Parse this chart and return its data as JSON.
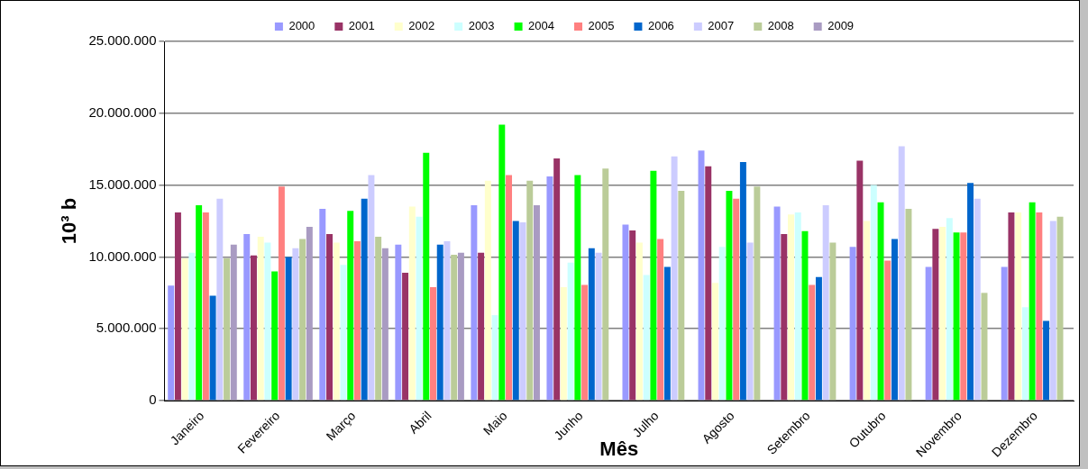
{
  "chart_data": {
    "type": "bar",
    "xlabel": "Mês",
    "ylabel": "10³ b",
    "categories": [
      "Janeiro",
      "Fevereiro",
      "Março",
      "Abril",
      "Maio",
      "Junho",
      "Julho",
      "Agosto",
      "Setembro",
      "Outubro",
      "Novembro",
      "Dezembro"
    ],
    "series": [
      {
        "name": "2000",
        "color": "#9999ff",
        "values": [
          8000000,
          11600000,
          13350000,
          10850000,
          13600000,
          15600000,
          12250000,
          17400000,
          13500000,
          10700000,
          9300000,
          9300000
        ]
      },
      {
        "name": "2001",
        "color": "#993366",
        "values": [
          13100000,
          10100000,
          11600000,
          8900000,
          10300000,
          16850000,
          11850000,
          16300000,
          11600000,
          16700000,
          11950000,
          13100000
        ]
      },
      {
        "name": "2002",
        "color": "#ffffcc",
        "values": [
          9900000,
          11400000,
          11000000,
          13500000,
          15300000,
          7900000,
          11000000,
          8200000,
          12950000,
          12500000,
          12100000,
          13100000
        ]
      },
      {
        "name": "2003",
        "color": "#ccffff",
        "values": [
          10300000,
          11000000,
          9450000,
          12800000,
          5950000,
          9600000,
          8750000,
          10700000,
          13100000,
          15000000,
          12700000,
          6500000
        ]
      },
      {
        "name": "2004",
        "color": "#00ff00",
        "values": [
          13600000,
          9000000,
          13200000,
          17250000,
          19200000,
          15700000,
          16000000,
          14600000,
          11800000,
          13800000,
          11700000,
          13800000
        ]
      },
      {
        "name": "2005",
        "color": "#ff8080",
        "values": [
          13100000,
          14900000,
          11100000,
          7900000,
          15700000,
          8050000,
          11250000,
          14050000,
          8050000,
          9750000,
          11700000,
          13100000
        ]
      },
      {
        "name": "2006",
        "color": "#0066cc",
        "values": [
          7300000,
          10000000,
          14050000,
          10850000,
          12500000,
          10600000,
          9300000,
          16600000,
          8600000,
          11250000,
          15150000,
          5550000
        ]
      },
      {
        "name": "2007",
        "color": "#ccccff",
        "values": [
          14050000,
          10600000,
          15700000,
          11100000,
          12400000,
          10300000,
          17000000,
          11000000,
          13600000,
          17700000,
          14050000,
          12500000
        ]
      },
      {
        "name": "2008",
        "color": "#bbcc99",
        "values": [
          9900000,
          11250000,
          11400000,
          10150000,
          15300000,
          16150000,
          14600000,
          14900000,
          11000000,
          13350000,
          7500000,
          12800000
        ]
      },
      {
        "name": "2009",
        "color": "#a99bc2",
        "values": [
          10850000,
          12100000,
          10600000,
          10300000,
          13600000,
          null,
          null,
          null,
          null,
          null,
          null,
          null
        ]
      }
    ],
    "ylim": [
      0,
      25000000
    ],
    "yticks": [
      {
        "value": 0,
        "label": "0"
      },
      {
        "value": 5000000,
        "label": "5.000.000"
      },
      {
        "value": 10000000,
        "label": "10.000.000"
      },
      {
        "value": 15000000,
        "label": "15.000.000"
      },
      {
        "value": 20000000,
        "label": "20.000.000"
      },
      {
        "value": 25000000,
        "label": "25.000.000"
      }
    ],
    "grid": "y",
    "legend": "top"
  }
}
